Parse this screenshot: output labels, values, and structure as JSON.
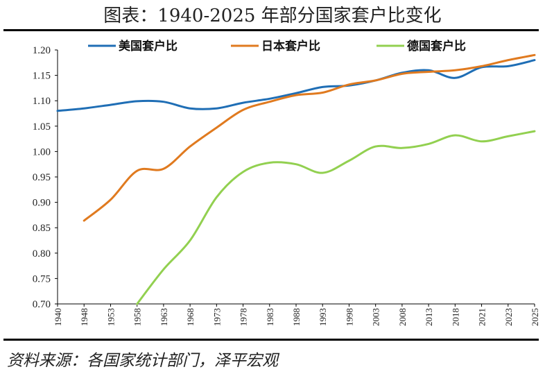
{
  "title": "图表：1940-2025 年部分国家套户比变化",
  "source": "资料来源：各国家统计部门，泽平宏观",
  "chart_data": {
    "type": "line",
    "ylim": [
      0.7,
      1.2
    ],
    "yticks": [
      "1.20",
      "1.15",
      "1.10",
      "1.05",
      "1.00",
      "0.95",
      "0.90",
      "0.85",
      "0.80",
      "0.75",
      "0.70"
    ],
    "xticks": [
      "1940",
      "1948",
      "1953",
      "1958",
      "1963",
      "1968",
      "1973",
      "1978",
      "1983",
      "1988",
      "1993",
      "1998",
      "2003",
      "2008",
      "2013",
      "2018",
      "2021",
      "2023",
      "2025"
    ],
    "legend_position": "top",
    "series": [
      {
        "name": "美国套户比",
        "color": "#1f6eb5",
        "points": [
          [
            "1940",
            1.08
          ],
          [
            "1948",
            1.085
          ],
          [
            "1953",
            1.092
          ],
          [
            "1958",
            1.099
          ],
          [
            "1963",
            1.098
          ],
          [
            "1968",
            1.085
          ],
          [
            "1973",
            1.085
          ],
          [
            "1978",
            1.096
          ],
          [
            "1983",
            1.104
          ],
          [
            "1988",
            1.115
          ],
          [
            "1993",
            1.127
          ],
          [
            "1998",
            1.13
          ],
          [
            "2003",
            1.14
          ],
          [
            "2008",
            1.155
          ],
          [
            "2013",
            1.16
          ],
          [
            "2018",
            1.145
          ],
          [
            "2021",
            1.166
          ],
          [
            "2023",
            1.168
          ],
          [
            "2025",
            1.18
          ]
        ]
      },
      {
        "name": "日本套户比",
        "color": "#e07a1f",
        "points": [
          [
            "1948",
            0.864
          ],
          [
            "1953",
            0.905
          ],
          [
            "1958",
            0.962
          ],
          [
            "1963",
            0.966
          ],
          [
            "1968",
            1.01
          ],
          [
            "1973",
            1.047
          ],
          [
            "1978",
            1.082
          ],
          [
            "1983",
            1.098
          ],
          [
            "1988",
            1.111
          ],
          [
            "1993",
            1.116
          ],
          [
            "1998",
            1.132
          ],
          [
            "2003",
            1.14
          ],
          [
            "2008",
            1.153
          ],
          [
            "2013",
            1.157
          ],
          [
            "2018",
            1.16
          ],
          [
            "2021",
            1.168
          ],
          [
            "2023",
            1.18
          ],
          [
            "2025",
            1.19
          ]
        ]
      },
      {
        "name": "德国套户比",
        "color": "#92d050",
        "points": [
          [
            "1958",
            0.7
          ],
          [
            "1963",
            0.768
          ],
          [
            "1968",
            0.825
          ],
          [
            "1973",
            0.91
          ],
          [
            "1978",
            0.96
          ],
          [
            "1983",
            0.978
          ],
          [
            "1988",
            0.975
          ],
          [
            "1993",
            0.958
          ],
          [
            "1998",
            0.982
          ],
          [
            "2003",
            1.01
          ],
          [
            "2008",
            1.007
          ],
          [
            "2013",
            1.015
          ],
          [
            "2018",
            1.032
          ],
          [
            "2021",
            1.02
          ],
          [
            "2023",
            1.03
          ],
          [
            "2025",
            1.04
          ]
        ]
      }
    ]
  }
}
